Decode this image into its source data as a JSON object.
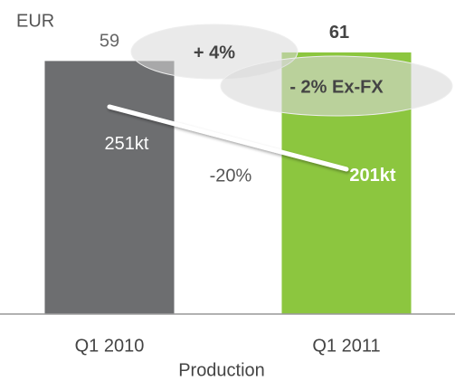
{
  "chart_data": {
    "type": "bar",
    "y_label": "EUR",
    "categories": [
      "Q1 2010",
      "Q1 2011"
    ],
    "values": [
      59,
      61
    ],
    "colors": [
      "#6d6e70",
      "#8cc63f"
    ],
    "ylim": [
      0,
      69
    ],
    "series": [
      {
        "name": "Production",
        "type": "line",
        "color": "#ffffff",
        "axis": "y2",
        "values": [
          251,
          201
        ],
        "value_labels": [
          "251kt",
          "201kt"
        ]
      }
    ],
    "y2lim": [
      85,
      322
    ],
    "annotations": [
      "+ 4%",
      "- 2% Ex-FX",
      "-20%"
    ]
  }
}
